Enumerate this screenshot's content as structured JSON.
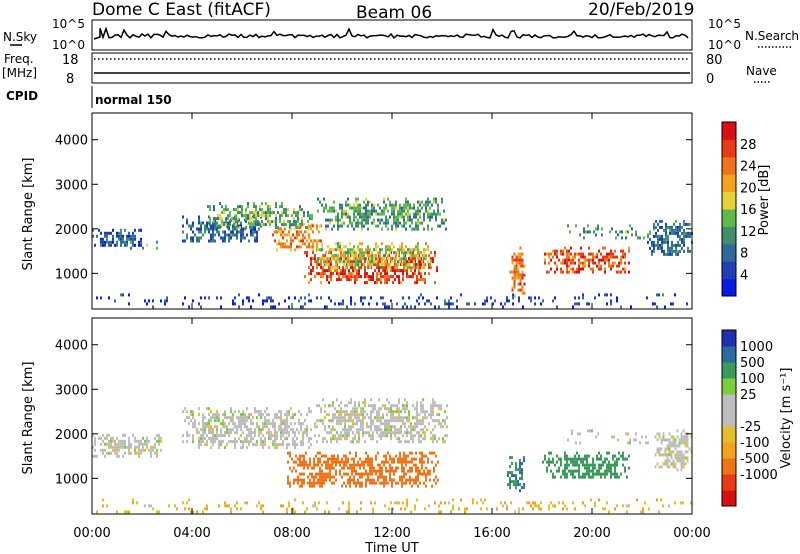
{
  "header": {
    "station": "Dome C East (fitACF)",
    "beam": "Beam 06",
    "date": "20/Feb/2019"
  },
  "top_panels": {
    "nsky_label": "N.Sky",
    "nsearch_label": "N.Search",
    "freq_label": "Freq.",
    "freq_unit": "[MHz]",
    "nave_label": "Nave",
    "cpid_label": "CPID",
    "cpid_value": "normal 150",
    "nsky_ticks": [
      "10^5",
      "10^0"
    ],
    "nsearch_ticks": [
      "10^5",
      "10^0"
    ],
    "freq_ticks": [
      "18",
      "8"
    ],
    "nave_ticks": [
      "80",
      "0"
    ]
  },
  "colors": {
    "power_scale": [
      "#0a1ae6",
      "#1f3fb5",
      "#2f6a9a",
      "#3e8f6a",
      "#5fb84a",
      "#e3d23a",
      "#f3a21d",
      "#f07318",
      "#e83a14",
      "#d81010"
    ],
    "velocity_scale": [
      "#d81010",
      "#e83a14",
      "#f07318",
      "#f3a21d",
      "#e3bf2a",
      "#bdbdbd",
      "#bdbdbd",
      "#7ccf3a",
      "#3a9a5a",
      "#2b6aa0",
      "#1e2fb0"
    ]
  },
  "chart_data": [
    {
      "type": "heatmap",
      "name": "power",
      "ylabel": "Slant Range [km]",
      "xlim": [
        0,
        24
      ],
      "ylim": [
        200,
        4600
      ],
      "yticks": [
        "1000",
        "2000",
        "3000",
        "4000"
      ],
      "colorbar": {
        "label": "Power [dB]",
        "ticks": [
          "4",
          "8",
          "12",
          "16",
          "20",
          "24",
          "28"
        ],
        "range": [
          0,
          32
        ]
      },
      "regions": [
        {
          "x": [
            0.0,
            2.0
          ],
          "y": [
            1600,
            2000
          ],
          "value": 6
        },
        {
          "x": [
            1.2,
            2.6
          ],
          "y": [
            1500,
            1800
          ],
          "value": 14
        },
        {
          "x": [
            3.6,
            6.8
          ],
          "y": [
            1700,
            2300
          ],
          "value": 8
        },
        {
          "x": [
            4.6,
            8.8
          ],
          "y": [
            2000,
            2600
          ],
          "value": 13
        },
        {
          "x": [
            7.2,
            9.2
          ],
          "y": [
            1500,
            2100
          ],
          "value": 22
        },
        {
          "x": [
            8.4,
            13.8
          ],
          "y": [
            800,
            1500
          ],
          "value": 27
        },
        {
          "x": [
            9.0,
            13.5
          ],
          "y": [
            1100,
            1700
          ],
          "value": 17
        },
        {
          "x": [
            9.0,
            14.2
          ],
          "y": [
            2000,
            2700
          ],
          "value": 12
        },
        {
          "x": [
            16.7,
            17.3
          ],
          "y": [
            500,
            1600
          ],
          "value": 24
        },
        {
          "x": [
            18.0,
            21.5
          ],
          "y": [
            1000,
            1600
          ],
          "value": 26
        },
        {
          "x": [
            19.0,
            22.5
          ],
          "y": [
            1800,
            2100
          ],
          "value": 12
        },
        {
          "x": [
            22.2,
            24.0
          ],
          "y": [
            1400,
            2200
          ],
          "value": 8
        },
        {
          "x": [
            0.0,
            24.0
          ],
          "y": [
            250,
            550
          ],
          "value": 5
        }
      ]
    },
    {
      "type": "heatmap",
      "name": "velocity",
      "ylabel": "Slant Range [km]",
      "xlabel": "Time UT",
      "xlim": [
        0,
        24
      ],
      "ylim": [
        200,
        4600
      ],
      "xticks": [
        "00:00",
        "04:00",
        "08:00",
        "12:00",
        "16:00",
        "20:00",
        "00:00"
      ],
      "yticks": [
        "1000",
        "2000",
        "3000",
        "4000"
      ],
      "colorbar": {
        "label": "Velocity [m s⁻¹]",
        "ticks": [
          "1000",
          "500",
          "100",
          "25",
          "-25",
          "-100",
          "-500",
          "-1000"
        ]
      },
      "regions": [
        {
          "x": [
            0.0,
            2.8
          ],
          "y": [
            1500,
            2000
          ],
          "value": 0
        },
        {
          "x": [
            3.6,
            8.8
          ],
          "y": [
            1700,
            2600
          ],
          "value": 0
        },
        {
          "x": [
            8.8,
            14.2
          ],
          "y": [
            1800,
            2800
          ],
          "value": 0
        },
        {
          "x": [
            7.8,
            13.8
          ],
          "y": [
            800,
            1600
          ],
          "value": -300
        },
        {
          "x": [
            16.6,
            17.3
          ],
          "y": [
            700,
            1500
          ],
          "value": 300
        },
        {
          "x": [
            18.0,
            21.5
          ],
          "y": [
            1000,
            1600
          ],
          "value": 200
        },
        {
          "x": [
            19.0,
            22.5
          ],
          "y": [
            1800,
            2100
          ],
          "value": 0
        },
        {
          "x": [
            22.5,
            24.0
          ],
          "y": [
            1200,
            2100
          ],
          "value": 0
        },
        {
          "x": [
            0.0,
            24.0
          ],
          "y": [
            250,
            550
          ],
          "value": -50
        }
      ]
    }
  ]
}
